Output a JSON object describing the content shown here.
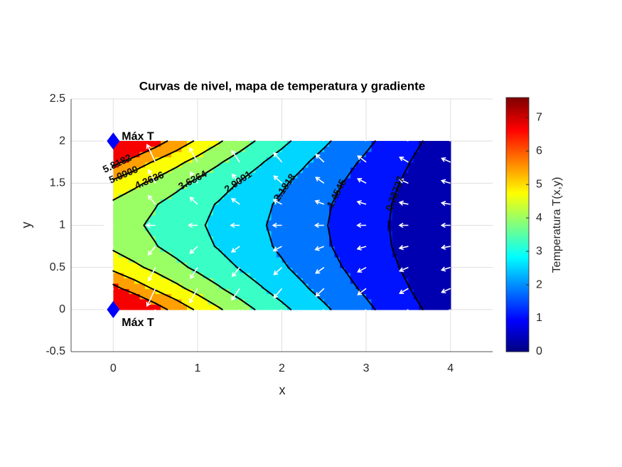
{
  "chart_data": {
    "type": "contour",
    "title": "Curvas de nivel, mapa de temperatura y gradiente",
    "xlabel": "x",
    "ylabel": "y",
    "xlim": [
      -0.5,
      4.5
    ],
    "xticks": [
      0,
      1,
      2,
      3,
      4
    ],
    "ylim": [
      -0.5,
      2.5
    ],
    "yticks": [
      -0.5,
      0,
      0.5,
      1,
      1.5,
      2,
      2.5
    ],
    "grid": true,
    "x": [
      0,
      0.25,
      0.5,
      0.75,
      1,
      1.25,
      1.5,
      1.75,
      2,
      2.25,
      2.5,
      2.75,
      3,
      3.25,
      3.5,
      3.75,
      4
    ],
    "y": [
      0,
      0.25,
      0.5,
      0.75,
      1,
      1.25,
      1.5,
      1.75,
      2
    ],
    "z": [
      [
        7.6,
        6.85,
        6.17,
        5.55,
        4.98,
        4.45,
        3.96,
        3.51,
        3.08,
        2.68,
        2.3,
        1.94,
        1.6,
        1.26,
        0.94,
        0.63,
        0.33
      ],
      [
        6.03,
        5.49,
        5.0,
        4.54,
        4.11,
        3.71,
        3.32,
        2.96,
        2.61,
        2.27,
        1.95,
        1.64,
        1.33,
        1.04,
        0.75,
        0.46,
        0.18
      ],
      [
        4.9,
        4.52,
        4.17,
        3.82,
        3.49,
        3.18,
        2.87,
        2.57,
        2.27,
        1.98,
        1.7,
        1.42,
        1.15,
        0.88,
        0.61,
        0.35,
        0.08
      ],
      [
        4.23,
        3.94,
        3.67,
        3.39,
        3.12,
        2.86,
        2.59,
        2.33,
        2.07,
        1.81,
        1.55,
        1.29,
        1.04,
        0.78,
        0.53,
        0.27,
        0.02
      ],
      [
        4,
        3.75,
        3.5,
        3.25,
        3,
        2.75,
        2.5,
        2.25,
        2,
        1.75,
        1.5,
        1.25,
        1,
        0.75,
        0.5,
        0.25,
        0
      ],
      [
        4.23,
        3.94,
        3.67,
        3.39,
        3.12,
        2.86,
        2.59,
        2.33,
        2.07,
        1.81,
        1.55,
        1.29,
        1.04,
        0.78,
        0.53,
        0.27,
        0.02
      ],
      [
        4.9,
        4.52,
        4.17,
        3.82,
        3.49,
        3.18,
        2.87,
        2.57,
        2.27,
        1.98,
        1.7,
        1.42,
        1.15,
        0.88,
        0.61,
        0.35,
        0.08
      ],
      [
        6.03,
        5.49,
        5.0,
        4.54,
        4.11,
        3.71,
        3.32,
        2.96,
        2.61,
        2.27,
        1.95,
        1.64,
        1.33,
        1.04,
        0.75,
        0.46,
        0.18
      ],
      [
        7.6,
        6.85,
        6.17,
        5.55,
        4.98,
        4.45,
        3.96,
        3.51,
        3.08,
        2.68,
        2.3,
        1.94,
        1.6,
        1.26,
        0.94,
        0.63,
        0.33
      ]
    ],
    "levels": [
      0.72727,
      1.4545,
      2.1818,
      2.9091,
      3.6364,
      4.3636,
      5.0909,
      5.8182
    ],
    "colormap": "jet",
    "clim": [
      0,
      7.6
    ],
    "colorbar_label": "Temperatura T(x,y)",
    "colorbar_ticks": [
      0,
      1,
      2,
      3,
      4,
      5,
      6,
      7
    ],
    "line_color": "#000000",
    "arrow_color": "#ffffff",
    "markers": [
      {
        "x": 0,
        "y": 2,
        "label": "Máx T"
      },
      {
        "x": 0,
        "y": 0,
        "label": "Máx T"
      }
    ],
    "marker_color": "#0000ff"
  }
}
